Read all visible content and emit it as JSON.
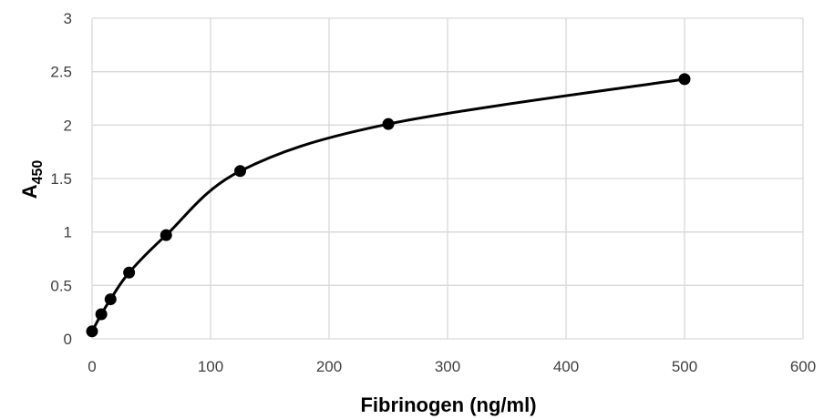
{
  "chart_data": {
    "type": "scatter",
    "title": "",
    "xlabel": "Fibrinogen (ng/ml)",
    "ylabel_main": "A",
    "ylabel_sub": "450",
    "xlim": [
      0,
      600
    ],
    "ylim": [
      0,
      3
    ],
    "x_ticks": [
      0,
      100,
      200,
      300,
      400,
      500,
      600
    ],
    "x_tick_labels": [
      "0",
      "100",
      "200",
      "300",
      "400",
      "500",
      "600"
    ],
    "y_ticks": [
      0,
      0.5,
      1,
      1.5,
      2,
      2.5,
      3
    ],
    "y_tick_labels": [
      "0",
      "0.5",
      "1",
      "1.5",
      "2",
      "2.5",
      "3"
    ],
    "grid": true,
    "legend": "none",
    "series": [
      {
        "x": [
          0,
          7.8,
          15.6,
          31.25,
          62.5,
          125,
          250,
          500
        ],
        "y": [
          0.07,
          0.23,
          0.37,
          0.62,
          0.97,
          1.57,
          2.01,
          2.43
        ],
        "marker": "filled-circle",
        "line": "smooth",
        "color": "#000000"
      }
    ],
    "colors": {
      "grid": "#d9d9d9",
      "series": "#000000",
      "tick_text": "#404040"
    }
  }
}
